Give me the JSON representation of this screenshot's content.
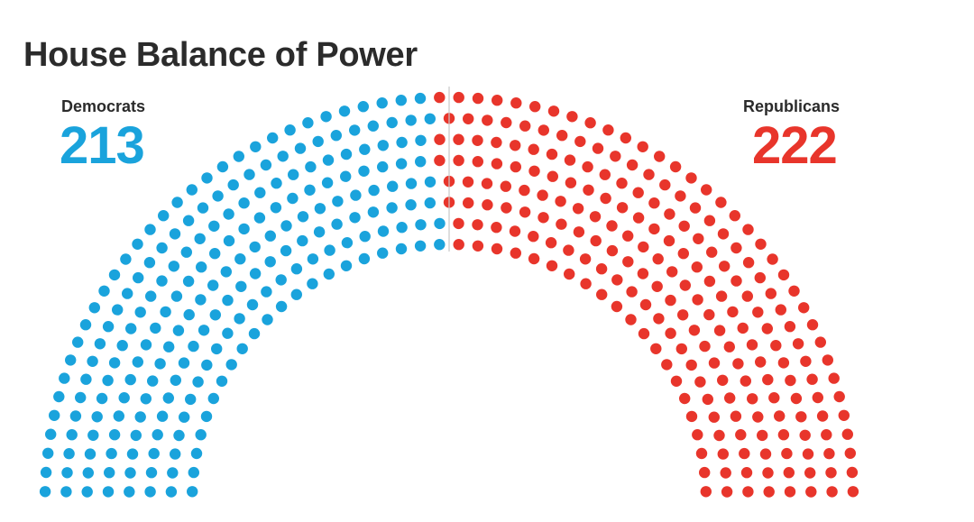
{
  "title": "House Balance of Power",
  "chart_data": {
    "type": "hemicycle",
    "title": "House Balance of Power",
    "total_seats": 435,
    "rows": 8,
    "series": [
      {
        "name": "Democrats",
        "seats": 213,
        "color": "#1aa3dc",
        "side": "left"
      },
      {
        "name": "Republicans",
        "seats": 222,
        "color": "#e8352b",
        "side": "right"
      }
    ],
    "majority_line": true
  },
  "labels": {
    "dem_name": "Democrats",
    "dem_count": "213",
    "rep_name": "Republicans",
    "rep_count": "222"
  }
}
